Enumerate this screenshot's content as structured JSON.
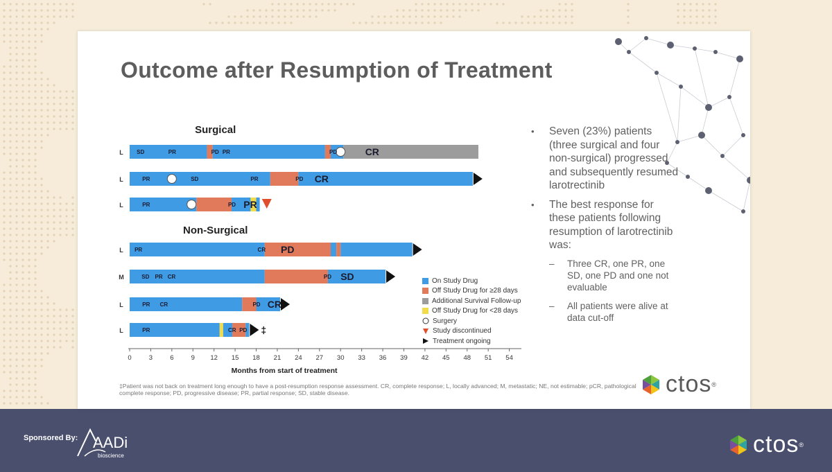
{
  "slide": {
    "title": "Outcome after Resumption of Treatment",
    "footnote": "‡Patient was not back on treatment long enough to have a post-resumption response assessment. CR, complete response; L, locally advanced; M, metastatic; NE, not estimable; pCR, pathological complete response; PD, progressive disease; PR, partial response; SD, stable disease.",
    "bullets": [
      "Seven (23%) patients (three surgical and four non-surgical) progressed and subsequently resumed larotrectinib",
      "The best response for these patients following resumption of larotrectinib was:"
    ],
    "sub_bullets": [
      "Three CR, one PR, one SD, one PD and one not evaluable",
      "All patients were alive at data cut-off"
    ],
    "bullet_mark": "•",
    "sub_mark": "–",
    "logo": {
      "text": "ctos",
      "reg": "®"
    }
  },
  "footer": {
    "sponsored_by": "Sponsored By:",
    "sponsor_name": "AADi",
    "sponsor_sub": "bioscience",
    "logo_text": "ctos",
    "logo_reg": "®"
  },
  "chart_data": {
    "type": "swimmer",
    "xlabel": "Months from start of treatment",
    "xlim": [
      0,
      57
    ],
    "xticks": [
      0,
      3,
      6,
      9,
      12,
      15,
      18,
      21,
      24,
      27,
      30,
      33,
      36,
      39,
      42,
      45,
      48,
      51,
      54,
      57
    ],
    "colors": {
      "on": "#3f9be4",
      "off28": "#e07a5a",
      "surv": "#9c9c9c",
      "offlt28": "#f3dc4c",
      "discontinued": "#e04e2c"
    },
    "groups": [
      {
        "label": "Surgical",
        "rows": [
          0,
          1,
          2
        ]
      },
      {
        "label": "Non-Surgical",
        "rows": [
          3,
          4,
          5,
          6
        ]
      }
    ],
    "legend": [
      {
        "key": "on",
        "label": "On Study Drug",
        "kind": "square"
      },
      {
        "key": "off28",
        "label": "Off Study Drug for ≥28 days",
        "kind": "square"
      },
      {
        "key": "surv",
        "label": "Additional Survival Follow-up",
        "kind": "square"
      },
      {
        "key": "offlt28",
        "label": "Off Study Drug for <28 days",
        "kind": "square"
      },
      {
        "key": "surgery",
        "label": "Surgery",
        "kind": "circle"
      },
      {
        "key": "discontinued",
        "label": "Study discontinued",
        "kind": "tri-down"
      },
      {
        "key": "ongoing",
        "label": "Treatment ongoing",
        "kind": "tri-right"
      }
    ],
    "patients": [
      {
        "stage": "L",
        "segments": [
          {
            "s": 0,
            "e": 11.0,
            "c": "on"
          },
          {
            "s": 11.0,
            "e": 11.8,
            "c": "off28"
          },
          {
            "s": 11.8,
            "e": 27.8,
            "c": "on"
          },
          {
            "s": 27.8,
            "e": 28.6,
            "c": "off28"
          },
          {
            "s": 28.6,
            "e": 30.4,
            "c": "on"
          },
          {
            "s": 30.4,
            "e": 49.6,
            "c": "surv"
          }
        ],
        "labels": [
          {
            "x": 1.0,
            "t": "SD",
            "big": false
          },
          {
            "x": 5.5,
            "t": "PR",
            "big": false
          },
          {
            "x": 11.6,
            "t": "PD",
            "big": false
          },
          {
            "x": 13.2,
            "t": "PR",
            "big": false
          },
          {
            "x": 28.4,
            "t": "PD",
            "big": false
          },
          {
            "x": 33.5,
            "t": "CR",
            "big": true
          }
        ],
        "surgery": [
          30.0
        ],
        "ongoing": false,
        "discontinued": null,
        "note": ""
      },
      {
        "stage": "L",
        "segments": [
          {
            "s": 0,
            "e": 20.0,
            "c": "on"
          },
          {
            "s": 20.0,
            "e": 24.0,
            "c": "off28"
          },
          {
            "s": 24.0,
            "e": 48.8,
            "c": "on"
          }
        ],
        "labels": [
          {
            "x": 1.8,
            "t": "PR",
            "big": false
          },
          {
            "x": 8.7,
            "t": "SD",
            "big": false
          },
          {
            "x": 17.2,
            "t": "PR",
            "big": false
          },
          {
            "x": 23.6,
            "t": "PD",
            "big": false
          },
          {
            "x": 26.3,
            "t": "CR",
            "big": true
          }
        ],
        "surgery": [
          6.0
        ],
        "ongoing": true,
        "discontinued": null,
        "note": ""
      },
      {
        "stage": "L",
        "segments": [
          {
            "s": 0,
            "e": 9.5,
            "c": "on"
          },
          {
            "s": 9.5,
            "e": 14.5,
            "c": "off28"
          },
          {
            "s": 14.5,
            "e": 17.2,
            "c": "on"
          },
          {
            "s": 17.2,
            "e": 18.0,
            "c": "offlt28"
          },
          {
            "s": 18.0,
            "e": 18.5,
            "c": "on"
          }
        ],
        "labels": [
          {
            "x": 1.8,
            "t": "PR",
            "big": false
          },
          {
            "x": 14.0,
            "t": "PD",
            "big": false
          },
          {
            "x": 16.2,
            "t": "PR",
            "big": true
          }
        ],
        "surgery": [
          8.8
        ],
        "ongoing": false,
        "discontinued": 19.5,
        "note": ""
      },
      {
        "stage": "L",
        "segments": [
          {
            "s": 0,
            "e": 19.2,
            "c": "on"
          },
          {
            "s": 19.2,
            "e": 28.6,
            "c": "off28"
          },
          {
            "s": 28.6,
            "e": 29.4,
            "c": "on"
          },
          {
            "s": 29.4,
            "e": 30.0,
            "c": "off28"
          },
          {
            "s": 30.0,
            "e": 40.2,
            "c": "on"
          }
        ],
        "labels": [
          {
            "x": 0.7,
            "t": "PR",
            "big": false
          },
          {
            "x": 18.2,
            "t": "CR",
            "big": false
          },
          {
            "x": 21.5,
            "t": "PD",
            "big": true
          }
        ],
        "surgery": [],
        "ongoing": true,
        "discontinued": null,
        "note": ""
      },
      {
        "stage": "M",
        "segments": [
          {
            "s": 0,
            "e": 19.2,
            "c": "on"
          },
          {
            "s": 19.2,
            "e": 28.2,
            "c": "off28"
          },
          {
            "s": 28.2,
            "e": 36.4,
            "c": "on"
          }
        ],
        "labels": [
          {
            "x": 1.7,
            "t": "SD",
            "big": false
          },
          {
            "x": 3.6,
            "t": "PR",
            "big": false
          },
          {
            "x": 5.4,
            "t": "CR",
            "big": false
          },
          {
            "x": 27.6,
            "t": "PD",
            "big": false
          },
          {
            "x": 30.0,
            "t": "SD",
            "big": true
          }
        ],
        "surgery": [],
        "ongoing": true,
        "discontinued": null,
        "note": ""
      },
      {
        "stage": "L",
        "segments": [
          {
            "s": 0,
            "e": 16.0,
            "c": "on"
          },
          {
            "s": 16.0,
            "e": 18.0,
            "c": "off28"
          },
          {
            "s": 18.0,
            "e": 21.4,
            "c": "on"
          }
        ],
        "labels": [
          {
            "x": 1.8,
            "t": "PR",
            "big": false
          },
          {
            "x": 4.3,
            "t": "CR",
            "big": false
          },
          {
            "x": 17.5,
            "t": "PD",
            "big": false
          },
          {
            "x": 19.6,
            "t": "CR",
            "big": true
          }
        ],
        "surgery": [],
        "ongoing": true,
        "discontinued": null,
        "note": ""
      },
      {
        "stage": "L",
        "segments": [
          {
            "s": 0,
            "e": 12.8,
            "c": "on"
          },
          {
            "s": 12.8,
            "e": 13.3,
            "c": "offlt28"
          },
          {
            "s": 13.3,
            "e": 14.6,
            "c": "on"
          },
          {
            "s": 14.6,
            "e": 16.5,
            "c": "off28"
          },
          {
            "s": 16.5,
            "e": 17.0,
            "c": "on"
          }
        ],
        "labels": [
          {
            "x": 1.8,
            "t": "PR",
            "big": false
          },
          {
            "x": 14.0,
            "t": "CR",
            "big": false
          },
          {
            "x": 15.6,
            "t": "PD",
            "big": false
          }
        ],
        "surgery": [],
        "ongoing": true,
        "discontinued": null,
        "note": "‡"
      }
    ]
  }
}
